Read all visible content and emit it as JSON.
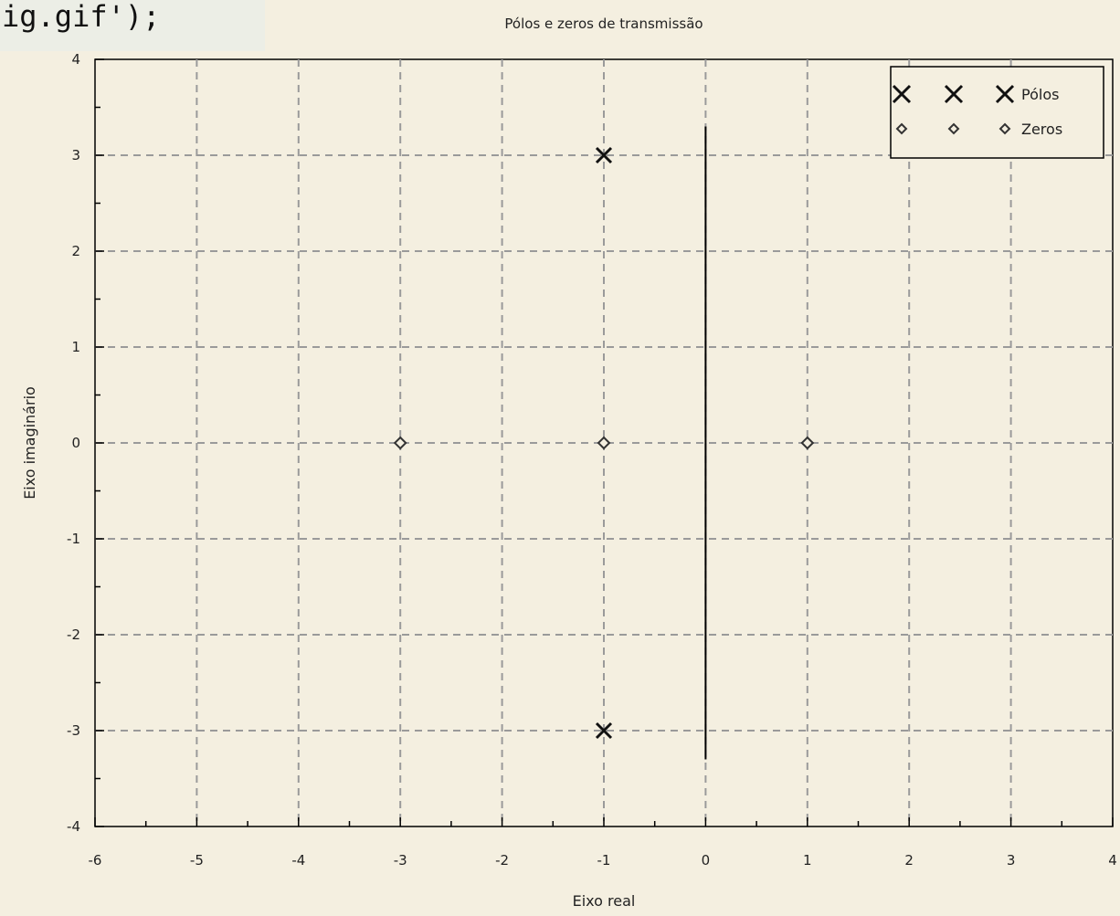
{
  "code_snippet": "ig.gif');",
  "chart_data": {
    "type": "scatter",
    "title": "Pólos e zeros de transmissão",
    "xlabel": "Eixo real",
    "ylabel": "Eixo imaginário",
    "xlim": [
      -6,
      4
    ],
    "ylim": [
      -4,
      4
    ],
    "x_ticks": [
      -6,
      -5,
      -4,
      -3,
      -2,
      -1,
      0,
      1,
      2,
      3,
      4
    ],
    "y_ticks": [
      -4,
      -3,
      -2,
      -1,
      0,
      1,
      2,
      3,
      4
    ],
    "x_tick_labels": [
      "-6",
      "-5",
      "-4",
      "-3",
      "-2",
      "-1",
      "0",
      "1",
      "2",
      "3",
      "4"
    ],
    "y_tick_labels": [
      "-4",
      "-3",
      "-2",
      "-1",
      "0",
      "1",
      "2",
      "3",
      "4"
    ],
    "grid": true,
    "legend_position": "top-right",
    "series": [
      {
        "name": "Pólos",
        "marker": "x",
        "color": "#111111",
        "x": [
          -1,
          -1
        ],
        "y": [
          3,
          -3
        ]
      },
      {
        "name": "Zeros",
        "marker": "diamond",
        "color": "#333333",
        "x": [
          -3,
          -1,
          1
        ],
        "y": [
          0,
          0,
          0
        ]
      }
    ],
    "vertical_line": {
      "x": 0,
      "y": [
        -3.3,
        3.3
      ],
      "color": "#000000"
    }
  }
}
